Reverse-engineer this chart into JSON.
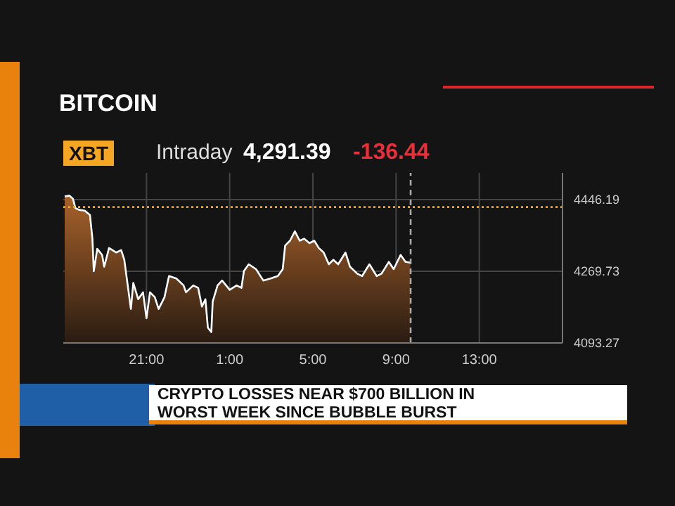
{
  "chart_data": {
    "type": "area",
    "title": "BITCOIN",
    "annotations": [
      "XBT",
      "Intraday",
      "4,291.39",
      "-136.44",
      "CRYPTO LOSSES NEAR $700 BILLION IN WORST WEEK SINCE BUBBLE BURST"
    ],
    "x": [
      "--11-19T17:04",
      "--11-19T17:18",
      "--11-19T17:28",
      "--11-19T17:35",
      "--11-19T17:46",
      "--11-19T18:02",
      "--11-19T18:17",
      "--11-19T18:24",
      "--11-19T18:28",
      "--11-19T18:38",
      "--11-19T18:52",
      "--11-19T18:58",
      "--11-19T19:12",
      "--11-19T19:33",
      "--11-19T19:47",
      "--11-19T19:56",
      "--11-19T20:04",
      "--11-19T20:15",
      "--11-19T20:22",
      "--11-19T20:36",
      "--11-19T20:50",
      "--11-19T21:00",
      "--11-19T21:10",
      "--11-19T21:24",
      "--11-19T21:35",
      "--11-19T21:52",
      "--11-19T22:05",
      "--11-19T22:26",
      "--11-19T22:47",
      "--11-19T22:54",
      "--11-19T23:15",
      "--11-19T23:29",
      "--11-19T23:40",
      "--11-19T23:50",
      "--11-19T23:57",
      "--11-20T00:07",
      "--11-20T00:11",
      "--11-20T00:25",
      "--11-20T00:38",
      "--11-20T01:00",
      "--11-20T01:20",
      "--11-20T01:34",
      "--11-20T01:41",
      "--11-20T01:55",
      "--11-20T02:16",
      "--11-20T02:37",
      "--11-20T02:58",
      "--11-20T03:19",
      "--11-20T03:33",
      "--11-20T03:40",
      "--11-20T03:54",
      "--11-20T04:08",
      "--11-20T04:22",
      "--11-20T04:35",
      "--11-20T04:50",
      "--11-20T05:04",
      "--11-20T05:17",
      "--11-20T05:31",
      "--11-20T05:46",
      "--11-20T05:59",
      "--11-20T06:13",
      "--11-20T06:34",
      "--11-20T06:47",
      "--11-20T07:08",
      "--11-20T07:22",
      "--11-20T07:43",
      "--11-20T08:04",
      "--11-20T08:18",
      "--11-20T08:39",
      "--11-20T08:53",
      "--11-20T09:13",
      "--11-20T09:27",
      "--11-20T09:41"
    ],
    "series": [
      {
        "color": "#ffffff",
        "values": [
          4454,
          4456,
          4448,
          4425,
          4421,
          4419,
          4408,
          4350,
          4270,
          4325,
          4310,
          4281,
          4327,
          4316,
          4322,
          4298,
          4247,
          4177,
          4241,
          4201,
          4218,
          4154,
          4218,
          4206,
          4177,
          4206,
          4258,
          4252,
          4235,
          4218,
          4235,
          4229,
          4183,
          4201,
          4131,
          4120,
          4195,
          4235,
          4247,
          4224,
          4235,
          4229,
          4270,
          4287,
          4275,
          4247,
          4252,
          4258,
          4275,
          4333,
          4345,
          4368,
          4345,
          4350,
          4339,
          4345,
          4327,
          4316,
          4287,
          4298,
          4287,
          4316,
          4281,
          4264,
          4258,
          4287,
          4258,
          4264,
          4293,
          4275,
          4310,
          4293,
          4291
        ]
      }
    ],
    "xlim": [
      "--11-19T17:00",
      "--11-20T17:00"
    ],
    "xticks": [
      {
        "value": "--11-19T21:00",
        "label": "21:00"
      },
      {
        "value": "--11-20T01:00",
        "label": "1:00"
      },
      {
        "value": "--11-20T05:00",
        "label": "5:00"
      },
      {
        "value": "--11-20T09:00",
        "label": "9:00"
      },
      {
        "value": "--11-20T13:00",
        "label": "13:00"
      }
    ],
    "ylim": [
      4093.27,
      4512
    ],
    "yticks": [
      4093.27,
      4269.73,
      4446.19
    ],
    "grid": true,
    "ref_lines": [
      {
        "axis": "y",
        "value": 4427.83,
        "color": "#f5a623",
        "line_style": "dotted"
      },
      {
        "axis": "x",
        "value": "--11-20T09:42",
        "color": "#aaaaaa",
        "line_style": "dashed"
      }
    ]
  }
}
